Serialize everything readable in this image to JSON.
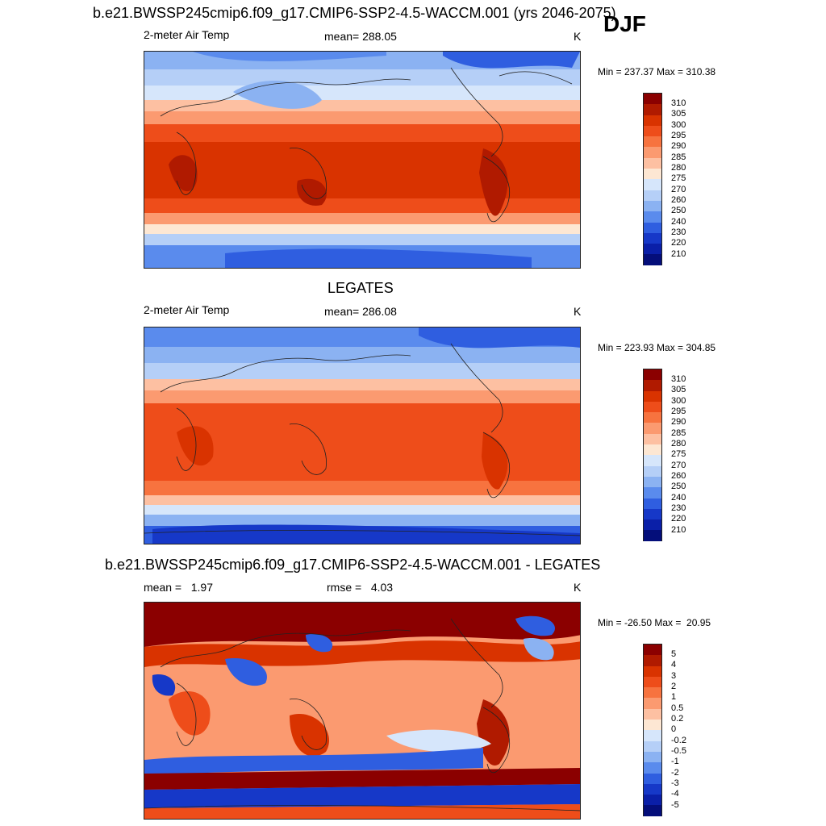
{
  "panel1": {
    "title": "b.e21.BWSSP245cmip6.f09_g17.CMIP6-SSP2-4.5-WACCM.001 (yrs 2046-2075)",
    "season": "DJF",
    "left_label": "2-meter Air Temp",
    "center_label": "mean= 288.05",
    "units": "K",
    "minmax": "Min = 237.37 Max = 310.38"
  },
  "panel2": {
    "title": "LEGATES",
    "left_label": "2-meter Air Temp",
    "center_label": "mean= 286.08",
    "units": "K",
    "minmax": "Min = 223.93 Max = 304.85"
  },
  "panel3": {
    "title": "b.e21.BWSSP245cmip6.f09_g17.CMIP6-SSP2-4.5-WACCM.001 - LEGATES",
    "left_label": "mean =   1.97",
    "center_label": "rmse =   4.03",
    "units": "K",
    "minmax": "Min = -26.50 Max =  20.95"
  },
  "colorbar_abs": {
    "labels": [
      "310",
      "305",
      "300",
      "295",
      "290",
      "285",
      "280",
      "275",
      "270",
      "260",
      "250",
      "240",
      "230",
      "220",
      "210"
    ],
    "colors": [
      "#8b0000",
      "#b01a00",
      "#d93300",
      "#ee4d1a",
      "#f7733f",
      "#fb9a70",
      "#fdc0a2",
      "#fde7d3",
      "#d6e6fb",
      "#b5cff7",
      "#8bb2f2",
      "#5a8bed",
      "#2f5ee0",
      "#1638c8",
      "#0a1fa8",
      "#040e7a"
    ]
  },
  "colorbar_diff": {
    "labels": [
      "5",
      "4",
      "3",
      "2",
      "1",
      "0.5",
      "0.2",
      "0",
      "-0.2",
      "-0.5",
      "-1",
      "-2",
      "-3",
      "-4",
      "-5"
    ],
    "colors": [
      "#8b0000",
      "#b01a00",
      "#d93300",
      "#ee4d1a",
      "#f7733f",
      "#fb9a70",
      "#fdc0a2",
      "#fde7d3",
      "#d6e6fb",
      "#b5cff7",
      "#8bb2f2",
      "#5a8bed",
      "#2f5ee0",
      "#1638c8",
      "#0a1fa8",
      "#040e7a"
    ]
  }
}
